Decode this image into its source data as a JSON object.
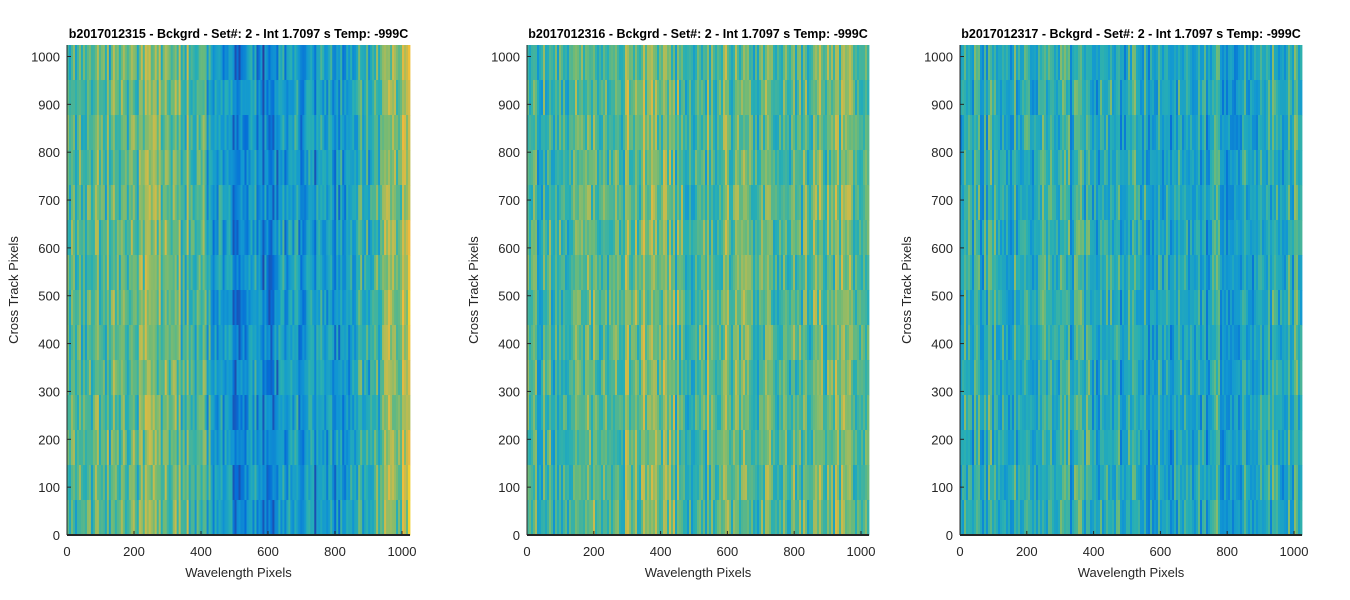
{
  "chart_data": [
    {
      "type": "heatmap",
      "title": "b2017012315 - Bckgrd - Set#: 2 - Int 1.7097 s Temp: -999C",
      "xlabel": "Wavelength Pixels",
      "ylabel": "Cross Track Pixels",
      "xlim": [
        0,
        1024
      ],
      "ylim": [
        0,
        1024
      ],
      "xticks": [
        0,
        200,
        400,
        600,
        800,
        1000
      ],
      "yticks": [
        0,
        100,
        200,
        300,
        400,
        500,
        600,
        700,
        800,
        900,
        1000
      ],
      "colormap": "parula",
      "column_mean_profile": {
        "x": [
          0,
          100,
          200,
          300,
          400,
          450,
          500,
          600,
          700,
          800,
          900,
          950,
          1000,
          1024
        ],
        "level": [
          0.5,
          0.52,
          0.56,
          0.58,
          0.52,
          0.34,
          0.28,
          0.3,
          0.32,
          0.34,
          0.44,
          0.56,
          0.68,
          0.7
        ]
      }
    },
    {
      "type": "heatmap",
      "title": "b2017012316 - Bckgrd - Set#: 2 - Int 1.7097 s Temp: -999C",
      "xlabel": "Wavelength Pixels",
      "ylabel": "Cross Track Pixels",
      "xlim": [
        0,
        1024
      ],
      "ylim": [
        0,
        1024
      ],
      "xticks": [
        0,
        200,
        400,
        600,
        800,
        1000
      ],
      "yticks": [
        0,
        100,
        200,
        300,
        400,
        500,
        600,
        700,
        800,
        900,
        1000
      ],
      "colormap": "parula",
      "column_mean_profile": {
        "x": [
          0,
          100,
          200,
          300,
          400,
          500,
          600,
          700,
          800,
          900,
          1000,
          1024
        ],
        "level": [
          0.46,
          0.48,
          0.52,
          0.6,
          0.58,
          0.52,
          0.58,
          0.56,
          0.52,
          0.56,
          0.64,
          0.66
        ]
      }
    },
    {
      "type": "heatmap",
      "title": "b2017012317 - Bckgrd - Set#: 2 - Int 1.7097 s Temp: -999C",
      "xlabel": "Wavelength Pixels",
      "ylabel": "Cross Track Pixels",
      "xlim": [
        0,
        1024
      ],
      "ylim": [
        0,
        1024
      ],
      "xticks": [
        0,
        200,
        400,
        600,
        800,
        1000
      ],
      "yticks": [
        0,
        100,
        200,
        300,
        400,
        500,
        600,
        700,
        800,
        900,
        1000
      ],
      "colormap": "parula",
      "column_mean_profile": {
        "x": [
          0,
          100,
          200,
          300,
          400,
          500,
          600,
          700,
          800,
          900,
          1000,
          1024
        ],
        "level": [
          0.42,
          0.44,
          0.46,
          0.45,
          0.44,
          0.42,
          0.4,
          0.38,
          0.4,
          0.42,
          0.46,
          0.48
        ]
      }
    }
  ]
}
